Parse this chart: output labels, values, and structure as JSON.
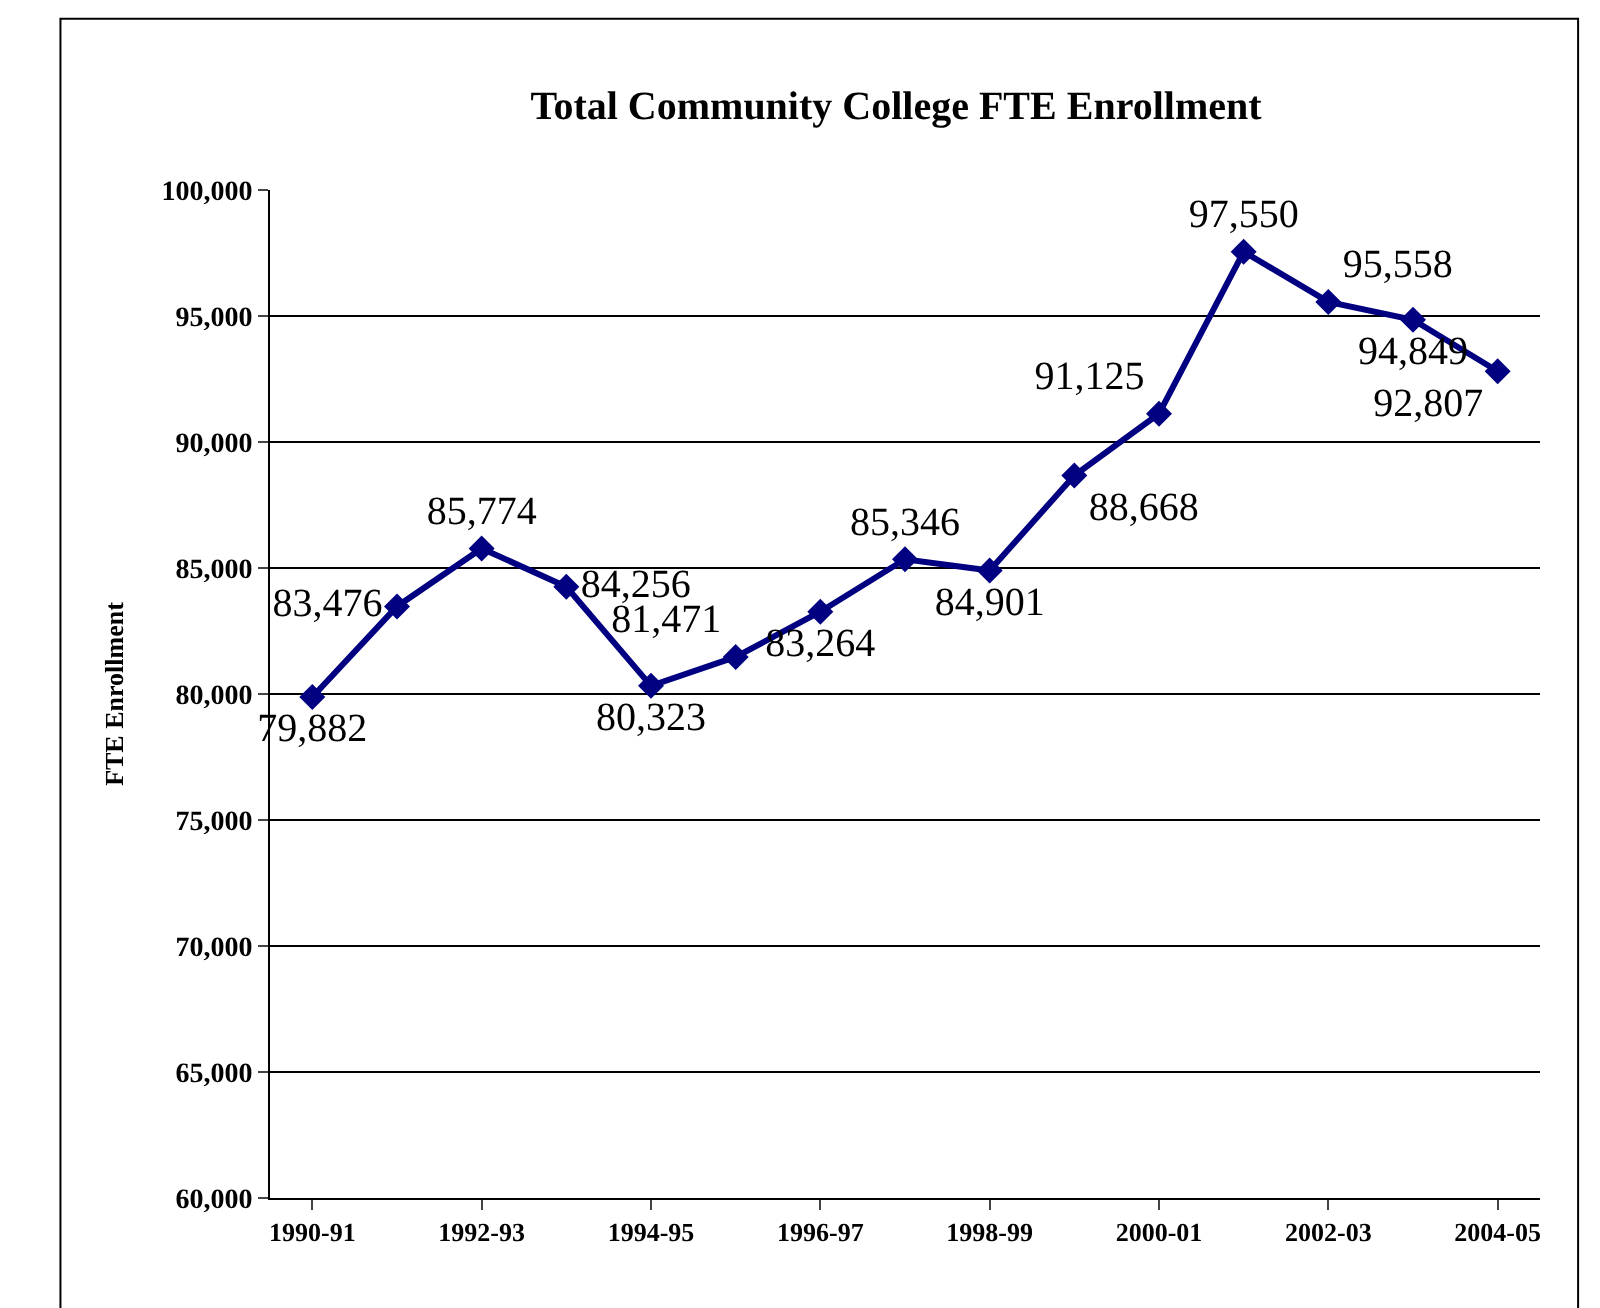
{
  "chart_data": {
    "type": "line",
    "title": "Total Community College FTE Enrollment",
    "ylabel": "FTE Enrollment",
    "categories": [
      "1990-91",
      null,
      "1992-93",
      null,
      "1994-95",
      null,
      "1996-97",
      null,
      "1998-99",
      null,
      "2000-01",
      null,
      "2002-03",
      null,
      "2004-05"
    ],
    "series": [
      {
        "color": "#000080",
        "values": [
          79882,
          83476,
          85774,
          84256,
          80323,
          81471,
          83264,
          85346,
          84901,
          88668,
          91125,
          97550,
          95558,
          94849,
          92807
        ],
        "value_labels": [
          "79,882",
          "83,476",
          "85,774",
          "84,256",
          "80,323",
          "81,471",
          "83,264",
          "85,346",
          "84,901",
          "88,668",
          "91,125",
          "97,550",
          "95,558",
          "94,849",
          "92,807"
        ]
      }
    ],
    "ylim": [
      60000,
      100000
    ],
    "yticks": [
      {
        "value": 60000,
        "label": "60,000"
      },
      {
        "value": 65000,
        "label": "65,000"
      },
      {
        "value": 70000,
        "label": "70,000"
      },
      {
        "value": 75000,
        "label": "75,000"
      },
      {
        "value": 80000,
        "label": "80,000"
      },
      {
        "value": 85000,
        "label": "85,000"
      },
      {
        "value": 90000,
        "label": "90,000"
      },
      {
        "value": 95000,
        "label": "95,000"
      },
      {
        "value": 100000,
        "label": "100,000"
      }
    ],
    "grid": "y",
    "legend": false,
    "marker": "diamond",
    "line_style": "solid"
  }
}
